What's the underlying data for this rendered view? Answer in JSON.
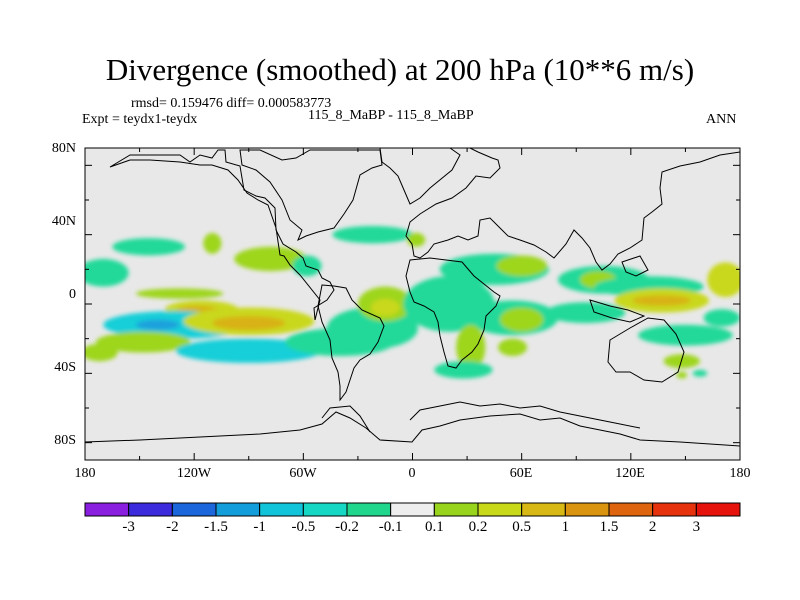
{
  "title": "Divergence (smoothed) at 200 hPa (10**6 m/s)",
  "stats": "rmsd= 0.159476 diff= 0.000583773",
  "expt": "Expt = teydx1-teydx",
  "case": "115_8_MaBP - 115_8_MaBP",
  "season": "ANN",
  "lat_labels": [
    "80N",
    "40N",
    "0",
    "40S",
    "80S"
  ],
  "lon_labels": [
    "180",
    "120W",
    "60W",
    "0",
    "60E",
    "120E",
    "180"
  ],
  "colorbar": {
    "labels": [
      "-3",
      "-2",
      "-1.5",
      "-1",
      "-0.5",
      "-0.2",
      "-0.1",
      "0.1",
      "0.2",
      "0.5",
      "1",
      "1.5",
      "2",
      "3"
    ],
    "colors": [
      "#8b1fe0",
      "#3c2bdc",
      "#1b66db",
      "#139ddb",
      "#12c4da",
      "#16d7c3",
      "#1fd68c",
      "#eeeeee",
      "#99d41c",
      "#c8d91a",
      "#d8b814",
      "#da9410",
      "#de640e",
      "#e6330e",
      "#e5130c"
    ]
  },
  "map_colors": {
    "background": "#e8e8e8",
    "neg_weak": "#22d99a",
    "neg_mid": "#18cfd8",
    "neg_strong": "#1fa0dc",
    "pos_weak": "#9ed61c",
    "pos_mid": "#c9d81b",
    "pos_strong": "#d8b212"
  },
  "field_features": [
    {
      "kind": "pos_weak",
      "lon": -128,
      "lat": 6,
      "rx": 24,
      "ry": 3
    },
    {
      "kind": "pos_mid",
      "lon": -116,
      "lat": -3,
      "rx": 20,
      "ry": 5
    },
    {
      "kind": "pos_strong",
      "lon": -118,
      "lat": -4,
      "rx": 12,
      "ry": 3
    },
    {
      "kind": "neg_mid",
      "lon": -130,
      "lat": -12,
      "rx": 40,
      "ry": 8
    },
    {
      "kind": "neg_strong",
      "lon": -140,
      "lat": -12,
      "rx": 12,
      "ry": 3
    },
    {
      "kind": "pos_weak",
      "lon": -148,
      "lat": -22,
      "rx": 26,
      "ry": 6
    },
    {
      "kind": "pos_mid",
      "lon": -90,
      "lat": -10,
      "rx": 36,
      "ry": 8
    },
    {
      "kind": "pos_strong",
      "lon": -90,
      "lat": -11,
      "rx": 20,
      "ry": 4
    },
    {
      "kind": "neg_mid",
      "lon": -90,
      "lat": -27,
      "rx": 40,
      "ry": 7
    },
    {
      "kind": "neg_weak",
      "lon": -145,
      "lat": 33,
      "rx": 20,
      "ry": 5
    },
    {
      "kind": "neg_weak",
      "lon": -170,
      "lat": 18,
      "rx": 14,
      "ry": 8
    },
    {
      "kind": "pos_weak",
      "lon": -172,
      "lat": -28,
      "rx": 10,
      "ry": 5
    },
    {
      "kind": "pos_weak",
      "lon": -110,
      "lat": 35,
      "rx": 5,
      "ry": 6
    },
    {
      "kind": "pos_weak",
      "lon": -78,
      "lat": 26,
      "rx": 20,
      "ry": 7
    },
    {
      "kind": "neg_weak",
      "lon": -58,
      "lat": 22,
      "rx": 8,
      "ry": 6
    },
    {
      "kind": "neg_weak",
      "lon": -22,
      "lat": 40,
      "rx": 22,
      "ry": 5
    },
    {
      "kind": "neg_weak",
      "lon": -22,
      "lat": -14,
      "rx": 25,
      "ry": 12
    },
    {
      "kind": "pos_weak",
      "lon": -15,
      "lat": 0,
      "rx": 15,
      "ry": 10
    },
    {
      "kind": "pos_mid",
      "lon": -15,
      "lat": -2,
      "rx": 8,
      "ry": 5
    },
    {
      "kind": "neg_weak",
      "lon": -40,
      "lat": -22,
      "rx": 30,
      "ry": 8
    },
    {
      "kind": "neg_weak",
      "lon": 20,
      "lat": 0,
      "rx": 25,
      "ry": 16
    },
    {
      "kind": "neg_weak",
      "lon": 55,
      "lat": -8,
      "rx": 25,
      "ry": 10
    },
    {
      "kind": "pos_weak",
      "lon": 60,
      "lat": -9,
      "rx": 12,
      "ry": 7
    },
    {
      "kind": "pos_weak",
      "lon": 32,
      "lat": -25,
      "rx": 8,
      "ry": 13
    },
    {
      "kind": "pos_weak",
      "lon": 55,
      "lat": -25,
      "rx": 8,
      "ry": 5
    },
    {
      "kind": "neg_weak",
      "lon": 28,
      "lat": -38,
      "rx": 16,
      "ry": 5
    },
    {
      "kind": "pos_weak",
      "lon": 2,
      "lat": 37,
      "rx": 5,
      "ry": 4
    },
    {
      "kind": "neg_weak",
      "lon": 45,
      "lat": 20,
      "rx": 30,
      "ry": 9
    },
    {
      "kind": "pos_weak",
      "lon": 60,
      "lat": 22,
      "rx": 14,
      "ry": 6
    },
    {
      "kind": "neg_weak",
      "lon": 105,
      "lat": 14,
      "rx": 25,
      "ry": 8
    },
    {
      "kind": "pos_weak",
      "lon": 102,
      "lat": 14,
      "rx": 10,
      "ry": 5
    },
    {
      "kind": "neg_weak",
      "lon": 95,
      "lat": -5,
      "rx": 22,
      "ry": 6
    },
    {
      "kind": "neg_weak",
      "lon": 130,
      "lat": 10,
      "rx": 30,
      "ry": 6
    },
    {
      "kind": "pos_mid",
      "lon": 137,
      "lat": 2,
      "rx": 26,
      "ry": 7
    },
    {
      "kind": "pos_strong",
      "lon": 137,
      "lat": 2,
      "rx": 16,
      "ry": 3
    },
    {
      "kind": "neg_weak",
      "lon": 150,
      "lat": -18,
      "rx": 26,
      "ry": 6
    },
    {
      "kind": "pos_mid",
      "lon": 172,
      "lat": 14,
      "rx": 10,
      "ry": 10
    },
    {
      "kind": "neg_weak",
      "lon": 170,
      "lat": -8,
      "rx": 10,
      "ry": 5
    },
    {
      "kind": "pos_weak",
      "lon": 148,
      "lat": -33,
      "rx": 10,
      "ry": 4
    },
    {
      "kind": "neg_weak",
      "lon": 158,
      "lat": -40,
      "rx": 4,
      "ry": 2
    },
    {
      "kind": "pos_weak",
      "lon": 148,
      "lat": -41,
      "rx": 3,
      "ry": 2
    }
  ]
}
